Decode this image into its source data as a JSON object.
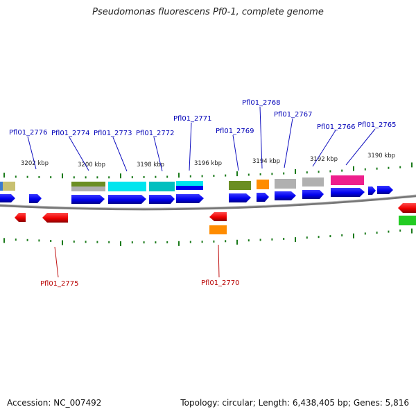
{
  "title": "Pseudomonas fluorescens Pf0-1, complete genome",
  "footer": {
    "accession": "Accession: NC_007492",
    "summary": "Topology: circular; Length: 6,438,405 bp; Genes: 5,816"
  },
  "colors": {
    "forward_gene": "#0000ee",
    "reverse_gene": "#ee0000",
    "forward_label": "#0000b8",
    "reverse_label": "#b80000",
    "ticks": "#1a7a1a",
    "backbone": "#777777",
    "cog_olive": "#6b8e23",
    "cog_cyan": "#00e5ee",
    "cog_teal": "#00bfbf",
    "cog_orange": "#ff8c00",
    "cog_gray": "#b0b0b0",
    "cog_magenta": "#ee1f8c",
    "cog_green": "#22cc22",
    "cog_khaki": "#c8c070"
  },
  "scale_labels": [
    "3202 kbp",
    "3200 kbp",
    "3198 kbp",
    "3196 kbp",
    "3194 kbp",
    "3192 kbp",
    "3190 kbp"
  ],
  "forward_gene_labels": [
    "Pfl01_2776",
    "Pfl01_2774",
    "Pfl01_2773",
    "Pfl01_2772",
    "Pfl01_2771",
    "Pfl01_2769",
    "Pfl01_2768",
    "Pfl01_2767",
    "Pfl01_2766",
    "Pfl01_2765"
  ],
  "reverse_gene_labels": [
    "Pfl01_2775",
    "Pfl01_2770"
  ]
}
